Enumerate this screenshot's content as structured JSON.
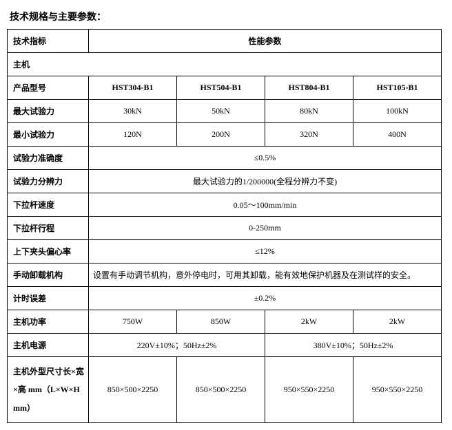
{
  "title": "技术规格与主要参数：",
  "header": {
    "col0": "技术指标",
    "colrest": "性能参数"
  },
  "section_main": "主机",
  "rows": {
    "model": {
      "label": "产品型号",
      "v": [
        "HST304-B1",
        "HST504-B1",
        "HST804-B1",
        "HST105-B1"
      ]
    },
    "max_force": {
      "label": "最大试验力",
      "v": [
        "30kN",
        "50kN",
        "80kN",
        "100kN"
      ]
    },
    "min_force": {
      "label": "最小试验力",
      "v": [
        "120N",
        "200N",
        "320N",
        "400N"
      ]
    },
    "accuracy": {
      "label": "试验力准确度",
      "val": "≤0.5%"
    },
    "resolution": {
      "label": "试验力分辨力",
      "val": "最大试验力的1/200000(全程分辨力不变)"
    },
    "speed": {
      "label": "下拉杆速度",
      "val": "0.05～100mm/min"
    },
    "stroke": {
      "label": "下拉杆行程",
      "val": "0-250mm"
    },
    "eccentric": {
      "label": "上下夹头偏心率",
      "val": "≤12%"
    },
    "manual": {
      "label": "手动卸载机构",
      "val": "设置有手动调节机构，意外停电时，可用其卸载，能有效地保护机器及在测试样的安全。"
    },
    "timing": {
      "label": "计时误差",
      "val": "±0.2%"
    },
    "power": {
      "label": "主机功率",
      "v": [
        "750W",
        "850W",
        "2kW",
        "2kW"
      ]
    },
    "supply": {
      "label": "主机电源",
      "left": "220V±10%；50Hz±2%",
      "right": "380V±10%；50Hz±2%"
    },
    "dims": {
      "label": "主机外型尺寸长×宽×高 mm（L×W×Hmm）",
      "v": [
        "850×500×2250",
        "850×500×2250",
        "950×550×2250",
        "950×550×2250"
      ]
    }
  }
}
